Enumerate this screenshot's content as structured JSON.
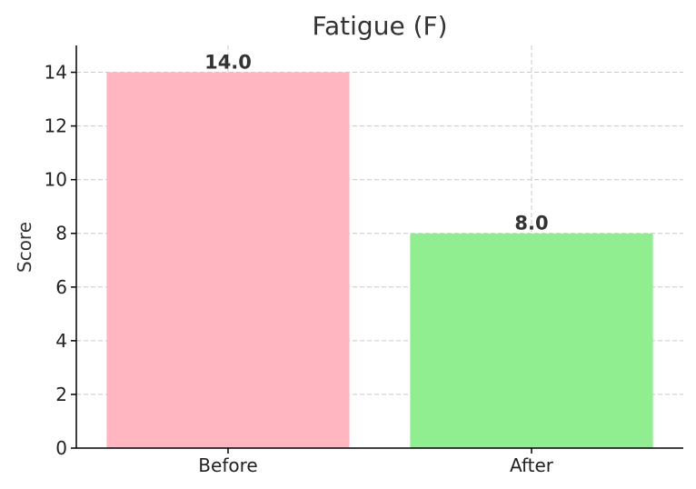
{
  "chart_data": {
    "type": "bar",
    "title": "Fatigue (F)",
    "xlabel": "",
    "ylabel": "Score",
    "categories": [
      "Before",
      "After"
    ],
    "values": [
      14.0,
      8.0
    ],
    "data_labels": [
      "14.0",
      "8.0"
    ],
    "colors": [
      "#FFB6C1",
      "#90EE90"
    ],
    "ylim": [
      0,
      15
    ],
    "yticks": [
      0,
      2,
      4,
      6,
      8,
      10,
      12,
      14
    ],
    "grid": true
  }
}
